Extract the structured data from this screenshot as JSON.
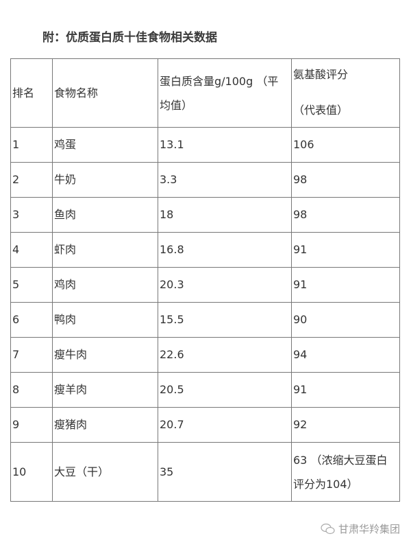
{
  "title": "附：优质蛋白质十佳食物相关数据",
  "table": {
    "headers": [
      "排名",
      "食物名称",
      "蛋白质含量g/100g （平均值）",
      "氨基酸评分",
      "（代表值）"
    ],
    "header_col3_line1": "蛋白质含量g/100g （平",
    "header_col3_line2": "均值）",
    "rows": [
      [
        "1",
        "鸡蛋",
        "13.1",
        "106"
      ],
      [
        "2",
        "牛奶",
        "3.3",
        "98"
      ],
      [
        "3",
        "鱼肉",
        "18",
        "98"
      ],
      [
        "4",
        "虾肉",
        "16.8",
        "91"
      ],
      [
        "5",
        "鸡肉",
        "20.3",
        "91"
      ],
      [
        "6",
        "鸭肉",
        "15.5",
        "90"
      ],
      [
        "7",
        "瘦牛肉",
        "22.6",
        "94"
      ],
      [
        "8",
        "瘦羊肉",
        "20.5",
        "91"
      ],
      [
        "9",
        "瘦猪肉",
        "20.7",
        "92"
      ],
      [
        "10",
        "大豆（干）",
        "35",
        "63 （浓缩大豆蛋白评分为104）"
      ]
    ],
    "last_score_line1": "63 （浓缩大豆蛋白",
    "last_score_line2": "评分为104）"
  },
  "watermark": {
    "icon": "wechat-icon",
    "text": "甘肃华羚集团"
  }
}
